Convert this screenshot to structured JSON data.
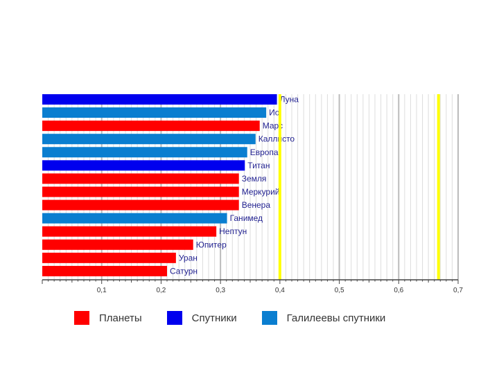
{
  "colors": {
    "planets": "#ff0000",
    "moons": "#0000ee",
    "galilean": "#0a7ed0",
    "reference_line": "#ffff00",
    "grid_major": "#bbbbbb",
    "grid_minor": "#dddddd"
  },
  "legend": {
    "planets": "Планеты",
    "moons": "Спутники",
    "galilean": "Галилеевы спутники"
  },
  "chart_data": {
    "type": "bar",
    "orientation": "horizontal",
    "xlim": [
      0,
      0.7
    ],
    "x_ticks": [
      "0,1",
      "0,2",
      "0,3",
      "0,4",
      "0,5",
      "0,6",
      "0,7"
    ],
    "x_tick_values": [
      0.1,
      0.2,
      0.3,
      0.4,
      0.5,
      0.6,
      0.7
    ],
    "reference_lines": [
      0.4,
      0.667
    ],
    "bars": [
      {
        "label": "Луна",
        "value": 0.395,
        "group": "moons"
      },
      {
        "label": "Ио",
        "value": 0.377,
        "group": "galilean"
      },
      {
        "label": "Марс",
        "value": 0.366,
        "group": "planets"
      },
      {
        "label": "Каллисто",
        "value": 0.359,
        "group": "galilean"
      },
      {
        "label": "Европа",
        "value": 0.345,
        "group": "galilean"
      },
      {
        "label": "Титан",
        "value": 0.341,
        "group": "moons"
      },
      {
        "label": "Земля",
        "value": 0.331,
        "group": "planets"
      },
      {
        "label": "Меркурий",
        "value": 0.331,
        "group": "planets"
      },
      {
        "label": "Венера",
        "value": 0.331,
        "group": "planets"
      },
      {
        "label": "Ганимед",
        "value": 0.311,
        "group": "galilean"
      },
      {
        "label": "Нептун",
        "value": 0.293,
        "group": "planets"
      },
      {
        "label": "Юпитер",
        "value": 0.254,
        "group": "planets"
      },
      {
        "label": "Уран",
        "value": 0.225,
        "group": "planets"
      },
      {
        "label": "Сатурн",
        "value": 0.21,
        "group": "planets"
      }
    ]
  }
}
